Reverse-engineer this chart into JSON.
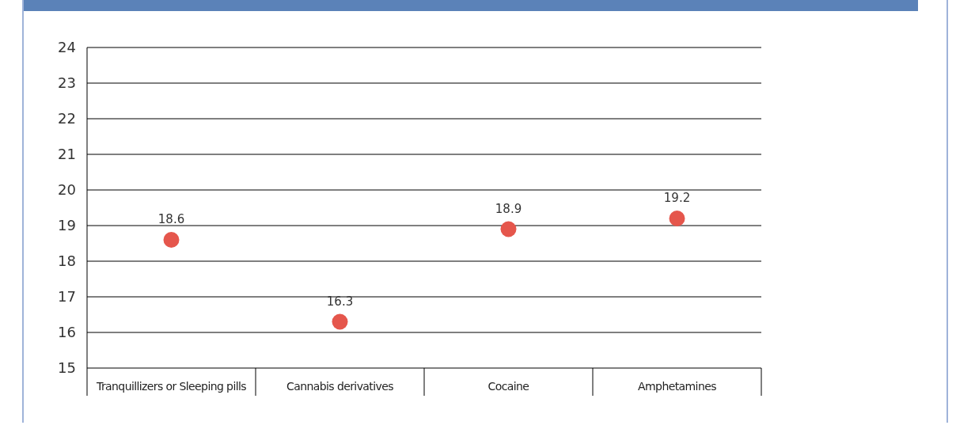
{
  "chart_data": {
    "type": "scatter",
    "categories": [
      "Tranquillizers or Sleeping pills",
      "Cannabis derivatives",
      "Cocaine",
      "Amphetamines"
    ],
    "values": [
      18.6,
      16.3,
      18.9,
      19.2
    ],
    "color": "#e5564c",
    "marker": "circle",
    "data_labels": true,
    "ylim": [
      15,
      24
    ],
    "yticks": [
      15,
      16,
      17,
      18,
      19,
      20,
      21,
      22,
      23,
      24
    ],
    "grid": "y"
  }
}
